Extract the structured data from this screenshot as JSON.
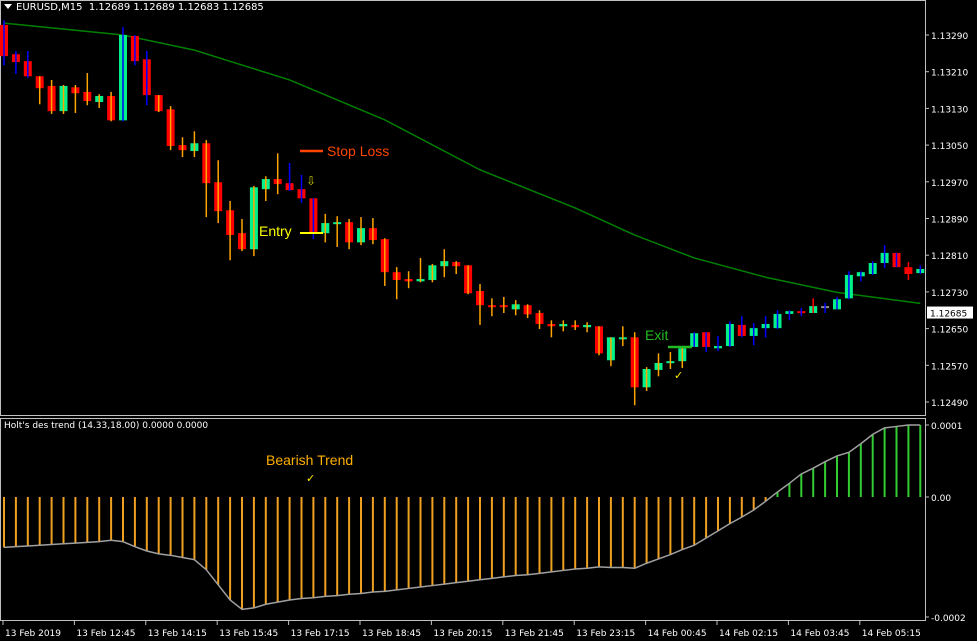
{
  "header": {
    "symbol": "EURUSD,M15",
    "ohlc": "1.12689 1.12689 1.12683 1.12685"
  },
  "indicator": {
    "title": "Holt's des trend (14.33,18.00) 0.0000 0.0000",
    "axis_labels": [
      "0.0001",
      "0.00",
      "-0.0002"
    ]
  },
  "price_axis": {
    "labels": [
      "1.13290",
      "1.13210",
      "1.13130",
      "1.13050",
      "1.12970",
      "1.12890",
      "1.12810",
      "1.12730",
      "1.12650",
      "1.12570",
      "1.12490"
    ],
    "current_price": "1.12685"
  },
  "time_axis": {
    "labels": [
      "13 Feb 2019",
      "13 Feb 12:45",
      "13 Feb 14:15",
      "13 Feb 15:45",
      "13 Feb 17:15",
      "13 Feb 18:45",
      "13 Feb 20:15",
      "13 Feb 21:45",
      "13 Feb 23:15",
      "14 Feb 00:45",
      "14 Feb 02:15",
      "14 Feb 03:45",
      "14 Feb 05:15"
    ]
  },
  "annotations": {
    "stop_loss": "Stop Loss",
    "entry": "Entry",
    "exit": "Exit",
    "bearish_trend": "Bearish Trend",
    "check": "✓",
    "down_arrow": "⇩"
  },
  "colors": {
    "bull": "#00f08a",
    "bear": "#ff0000",
    "wick_orange": "#ffa500",
    "wick_blue": "#0000ff",
    "wick_red": "#ff0000",
    "ma": "#008000",
    "hist_neg": "#f0a020",
    "hist_pos": "#33cc33",
    "line": "#a0a0a0",
    "stop_loss": "#ff4500",
    "entry": "#ffff00",
    "exit": "#22bb22",
    "bearish": "#ffb000"
  },
  "chart_data": {
    "type": "candlestick",
    "candles_ohlc": [
      [
        1.13312,
        1.13322,
        1.13224,
        1.13244
      ],
      [
        1.13248,
        1.13255,
        1.13205,
        1.13231
      ],
      [
        1.13233,
        1.13255,
        1.13196,
        1.132
      ],
      [
        1.132,
        1.132,
        1.13139,
        1.13174
      ],
      [
        1.13179,
        1.13192,
        1.13118,
        1.13124
      ],
      [
        1.13124,
        1.13181,
        1.13118,
        1.13179
      ],
      [
        1.13176,
        1.13181,
        1.1312,
        1.13163
      ],
      [
        1.13166,
        1.13207,
        1.13137,
        1.13146
      ],
      [
        1.13144,
        1.13161,
        1.13131,
        1.13157
      ],
      [
        1.13157,
        1.13166,
        1.13102,
        1.13104
      ],
      [
        1.13104,
        1.13307,
        1.13102,
        1.1329
      ],
      [
        1.13288,
        1.1329,
        1.13224,
        1.13233
      ],
      [
        1.13237,
        1.13255,
        1.13137,
        1.13159
      ],
      [
        1.13159,
        1.13159,
        1.13122,
        1.13124
      ],
      [
        1.13128,
        1.13135,
        1.13039,
        1.13048
      ],
      [
        1.1305,
        1.13067,
        1.13024,
        1.13039
      ],
      [
        1.13037,
        1.1308,
        1.13024,
        1.13054
      ],
      [
        1.13054,
        1.13061,
        1.12893,
        1.12967
      ],
      [
        1.12969,
        1.13017,
        1.1288,
        1.12906
      ],
      [
        1.12908,
        1.12928,
        1.12799,
        1.12854
      ],
      [
        1.12858,
        1.12889,
        1.12819,
        1.12823
      ],
      [
        1.12823,
        1.12961,
        1.12808,
        1.12958
      ],
      [
        1.12954,
        1.12982,
        1.12928,
        1.12976
      ],
      [
        1.12976,
        1.13032,
        1.12943,
        1.12965
      ],
      [
        1.12967,
        1.13011,
        1.1295,
        1.12952
      ],
      [
        1.12954,
        1.12985,
        1.12924,
        1.12934
      ],
      [
        1.12934,
        1.12934,
        1.12845,
        1.12858
      ],
      [
        1.12858,
        1.129,
        1.12838,
        1.1288
      ],
      [
        1.12878,
        1.12895,
        1.12828,
        1.12882
      ],
      [
        1.12882,
        1.12889,
        1.12823,
        1.12838
      ],
      [
        1.12838,
        1.12893,
        1.12832,
        1.12869
      ],
      [
        1.12869,
        1.12891,
        1.12834,
        1.12843
      ],
      [
        1.12845,
        1.12847,
        1.12743,
        1.12773
      ],
      [
        1.12773,
        1.12784,
        1.12714,
        1.12756
      ],
      [
        1.12758,
        1.12775,
        1.12738,
        1.12753
      ],
      [
        1.12753,
        1.12804,
        1.12751,
        1.12758
      ],
      [
        1.12756,
        1.12791,
        1.12751,
        1.12788
      ],
      [
        1.12786,
        1.12823,
        1.12762,
        1.12797
      ],
      [
        1.12795,
        1.12797,
        1.12769,
        1.12786
      ],
      [
        1.12788,
        1.12788,
        1.12725,
        1.12727
      ],
      [
        1.12732,
        1.12747,
        1.12658,
        1.12701
      ],
      [
        1.12701,
        1.12716,
        1.12677,
        1.12699
      ],
      [
        1.12701,
        1.12719,
        1.12684,
        1.12697
      ],
      [
        1.12692,
        1.12712,
        1.12679,
        1.12703
      ],
      [
        1.12701,
        1.12703,
        1.12673,
        1.12681
      ],
      [
        1.12684,
        1.1269,
        1.12649,
        1.1266
      ],
      [
        1.1266,
        1.12668,
        1.12631,
        1.12655
      ],
      [
        1.12655,
        1.12668,
        1.12644,
        1.1266
      ],
      [
        1.12658,
        1.12668,
        1.12647,
        1.12653
      ],
      [
        1.12653,
        1.12664,
        1.12642,
        1.12658
      ],
      [
        1.12655,
        1.12655,
        1.12592,
        1.12596
      ],
      [
        1.12581,
        1.12631,
        1.12568,
        1.12631
      ],
      [
        1.12629,
        1.12655,
        1.12612,
        1.12631
      ],
      [
        1.12631,
        1.12642,
        1.12483,
        1.12522
      ],
      [
        1.12522,
        1.12566,
        1.12514,
        1.12562
      ],
      [
        1.1256,
        1.12596,
        1.12546,
        1.12575
      ],
      [
        1.12575,
        1.12599,
        1.12562,
        1.12579
      ],
      [
        1.12579,
        1.12612,
        1.12564,
        1.12607
      ],
      [
        1.1261,
        1.12642,
        1.1261,
        1.1264
      ],
      [
        1.12642,
        1.12642,
        1.12599,
        1.1261
      ],
      [
        1.12607,
        1.12634,
        1.12601,
        1.12612
      ],
      [
        1.12612,
        1.12666,
        1.1261,
        1.1266
      ],
      [
        1.12658,
        1.12677,
        1.12631,
        1.12634
      ],
      [
        1.12634,
        1.12662,
        1.12614,
        1.12651
      ],
      [
        1.12651,
        1.12677,
        1.12631,
        1.1266
      ],
      [
        1.12651,
        1.1269,
        1.12649,
        1.12682
      ],
      [
        1.12682,
        1.1269,
        1.12668,
        1.12688
      ],
      [
        1.12688,
        1.12695,
        1.12677,
        1.12684
      ],
      [
        1.12684,
        1.12716,
        1.12684,
        1.12699
      ],
      [
        1.12699,
        1.12706,
        1.12684,
        1.12699
      ],
      [
        1.12692,
        1.12719,
        1.12692,
        1.12714
      ],
      [
        1.12716,
        1.12775,
        1.12714,
        1.12767
      ],
      [
        1.12764,
        1.12775,
        1.12753,
        1.12773
      ],
      [
        1.12769,
        1.12797,
        1.12767,
        1.12793
      ],
      [
        1.12793,
        1.12832,
        1.12782,
        1.12815
      ],
      [
        1.12815,
        1.12815,
        1.12784,
        1.12784
      ],
      [
        1.12784,
        1.12795,
        1.12756,
        1.12769
      ],
      [
        1.12771,
        1.12788,
        1.12769,
        1.1278
      ]
    ],
    "wick_colors": "bbbooooooobbbooooooooooobbbooooooooooooooooooooooooooooooobbbbbbbbbbrbbbbbbbrbb",
    "moving_average_points": [
      [
        0,
        1.13316
      ],
      [
        10,
        1.1329
      ],
      [
        16,
        1.13257
      ],
      [
        24,
        1.13192
      ],
      [
        32,
        1.13105
      ],
      [
        40,
        1.12996
      ],
      [
        48,
        1.12913
      ],
      [
        53,
        1.12854
      ],
      [
        58,
        1.12804
      ],
      [
        64,
        1.12762
      ],
      [
        70,
        1.12729
      ],
      [
        77,
        1.12705
      ]
    ],
    "indicator_values": [
      -7e-05,
      -6.9e-05,
      -6.8e-05,
      -6.7e-05,
      -6.6e-05,
      -6.5e-05,
      -6.4e-05,
      -6.3e-05,
      -6.2e-05,
      -6e-05,
      -6.2e-05,
      -6.9e-05,
      -7.5e-05,
      -7.9e-05,
      -8.1e-05,
      -8.4e-05,
      -8.7e-05,
      -0.000101,
      -0.000122,
      -0.000143,
      -0.000156,
      -0.000154,
      -0.000149,
      -0.000146,
      -0.000143,
      -0.000141,
      -0.00014,
      -0.000138,
      -0.000137,
      -0.000135,
      -0.000134,
      -0.000132,
      -0.000131,
      -0.000129,
      -0.000127,
      -0.000125,
      -0.000123,
      -0.000121,
      -0.000119,
      -0.000117,
      -0.000115,
      -0.000113,
      -0.000111,
      -0.000109,
      -0.000108,
      -0.000106,
      -0.000104,
      -0.000102,
      -0.0001,
      -9.9e-05,
      -9.7e-05,
      -9.8e-05,
      -9.8e-05,
      -9.9e-05,
      -9.2e-05,
      -8.6e-05,
      -8e-05,
      -7.3e-05,
      -6.7e-05,
      -5.7e-05,
      -4.7e-05,
      -3.7e-05,
      -2.8e-05,
      -1.8e-05,
      -6e-06,
      7e-06,
      1.9e-05,
      3.2e-05,
      4e-05,
      4.9e-05,
      5.7e-05,
      6.2e-05,
      7.4e-05,
      8.7e-05,
      9.6e-05,
      9.8e-05,
      0.0001,
      0.0001
    ],
    "price_range": [
      1.1249,
      1.1329
    ],
    "indicator_range": [
      -0.0002,
      0.0001
    ]
  }
}
